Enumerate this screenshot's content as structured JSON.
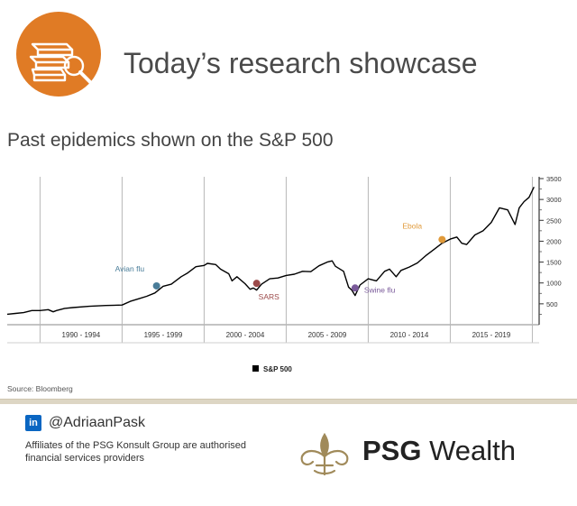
{
  "header": {
    "title": "Today’s research showcase",
    "icon": "books-magnifier-icon",
    "icon_color": "#e07b25"
  },
  "chart_data": {
    "type": "line",
    "title": "Past epidemics shown on the S&P 500",
    "x_range": [
      "1988-01",
      "2020-03"
    ],
    "ylim": [
      0,
      3500
    ],
    "y_ticks": [
      500,
      1000,
      1500,
      2000,
      2500,
      3000,
      3500
    ],
    "y_tick_labels": [
      "500",
      "1000",
      "1500",
      "2000",
      "2500",
      "3000",
      "3500"
    ],
    "y_axis_position": "right",
    "x_periods": [
      "1990 - 1994",
      "1995 - 1999",
      "2000 - 2004",
      "2005 - 2009",
      "2010 - 2014",
      "2015 - 2019"
    ],
    "vertical_gridlines": true,
    "legend_position": "bottom-center",
    "series": [
      {
        "name": "S&P 500",
        "color": "#000000",
        "x": [
          1988.0,
          1988.5,
          1989.0,
          1989.5,
          1990.0,
          1990.5,
          1990.8,
          1991.0,
          1991.5,
          1992.0,
          1993.0,
          1994.0,
          1995.0,
          1995.5,
          1996.0,
          1996.5,
          1997.0,
          1997.5,
          1998.0,
          1998.6,
          1999.0,
          1999.5,
          2000.0,
          2000.2,
          2000.7,
          2001.0,
          2001.5,
          2001.7,
          2002.0,
          2002.5,
          2002.8,
          2003.0,
          2003.2,
          2003.5,
          2004.0,
          2004.5,
          2005.0,
          2005.5,
          2006.0,
          2006.5,
          2007.0,
          2007.5,
          2007.8,
          2008.0,
          2008.5,
          2008.8,
          2009.0,
          2009.2,
          2009.5,
          2010.0,
          2010.5,
          2011.0,
          2011.3,
          2011.7,
          2012.0,
          2012.5,
          2013.0,
          2013.5,
          2014.0,
          2014.5,
          2015.0,
          2015.4,
          2015.7,
          2016.0,
          2016.5,
          2017.0,
          2017.5,
          2018.0,
          2018.5,
          2018.95,
          2019.2,
          2019.5,
          2019.8,
          2020.1
        ],
        "y": [
          250,
          270,
          290,
          340,
          340,
          360,
          310,
          340,
          390,
          410,
          440,
          460,
          470,
          560,
          620,
          680,
          760,
          920,
          970,
          1150,
          1240,
          1390,
          1420,
          1470,
          1440,
          1330,
          1220,
          1050,
          1150,
          980,
          850,
          880,
          830,
          970,
          1100,
          1120,
          1180,
          1210,
          1280,
          1270,
          1410,
          1500,
          1530,
          1400,
          1280,
          900,
          830,
          700,
          950,
          1100,
          1050,
          1280,
          1330,
          1150,
          1300,
          1380,
          1480,
          1650,
          1800,
          1950,
          2050,
          2100,
          1950,
          1920,
          2150,
          2250,
          2450,
          2800,
          2750,
          2400,
          2800,
          2950,
          3050,
          3300
        ]
      }
    ],
    "annotations": [
      {
        "label": "Avian flu",
        "x": 1997.1,
        "y": 930,
        "color": "#4a7d99"
      },
      {
        "label": "SARS",
        "x": 2003.2,
        "y": 990,
        "color": "#9c4a4a"
      },
      {
        "label": "Swine flu",
        "x": 2009.2,
        "y": 880,
        "color": "#7a5a9a"
      },
      {
        "label": "Ebola",
        "x": 2014.5,
        "y": 2040,
        "color": "#e09a3a"
      }
    ]
  },
  "source": "Source: Bloomberg",
  "footer": {
    "linkedin_icon": "linkedin-icon",
    "linkedin_glyph": "in",
    "linkedin_color": "#0a66c2",
    "handle": "@AdriaanPask",
    "affiliates": "Affiliates of the PSG Konsult Group are authorised financial services providers",
    "brand_strong": "PSG",
    "brand_rest": " Wealth",
    "brand_emblem_icon": "fleur-de-lis-emblem-icon",
    "brand_emblem_color": "#a08a5a"
  }
}
